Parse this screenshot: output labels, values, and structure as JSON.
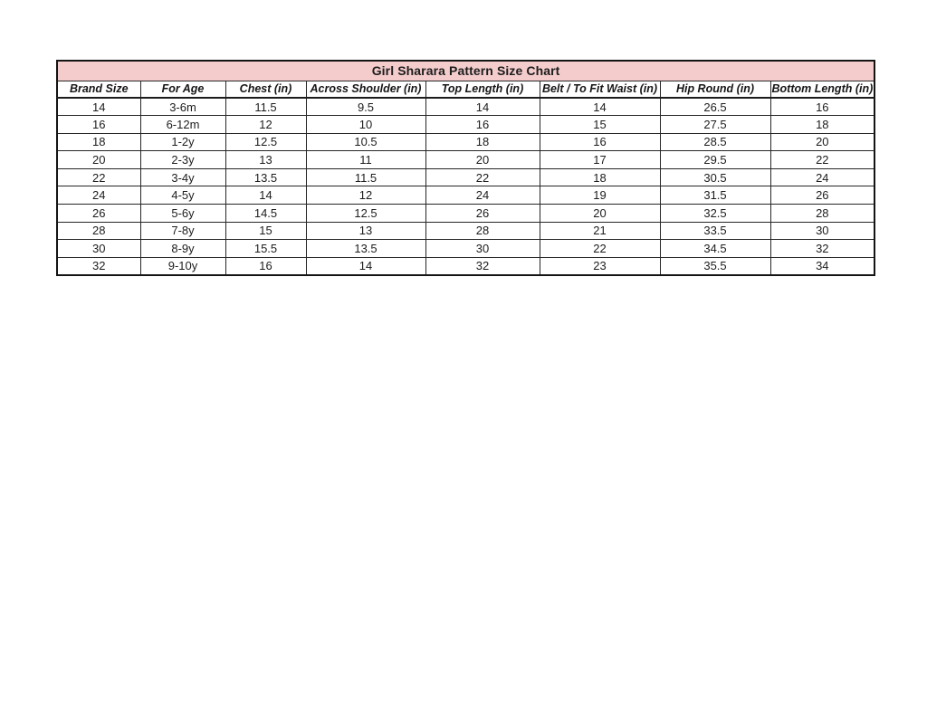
{
  "colors": {
    "title_background": "#f4cccc",
    "border": "#262626",
    "outer_border": "#141414",
    "text": "#1d1d1d",
    "page_background": "#ffffff"
  },
  "chart_data": {
    "type": "table",
    "title": "Girl Sharara Pattern Size Chart",
    "columns": [
      "Brand Size",
      "For Age",
      "Chest (in)",
      "Across Shoulder (in)",
      "Top Length (in)",
      "Belt / To Fit Waist (in)",
      "Hip Round (in)",
      "Bottom Length (in)"
    ],
    "rows": [
      [
        "14",
        "3-6m",
        "11.5",
        "9.5",
        "14",
        "14",
        "26.5",
        "16"
      ],
      [
        "16",
        "6-12m",
        "12",
        "10",
        "16",
        "15",
        "27.5",
        "18"
      ],
      [
        "18",
        "1-2y",
        "12.5",
        "10.5",
        "18",
        "16",
        "28.5",
        "20"
      ],
      [
        "20",
        "2-3y",
        "13",
        "11",
        "20",
        "17",
        "29.5",
        "22"
      ],
      [
        "22",
        "3-4y",
        "13.5",
        "11.5",
        "22",
        "18",
        "30.5",
        "24"
      ],
      [
        "24",
        "4-5y",
        "14",
        "12",
        "24",
        "19",
        "31.5",
        "26"
      ],
      [
        "26",
        "5-6y",
        "14.5",
        "12.5",
        "26",
        "20",
        "32.5",
        "28"
      ],
      [
        "28",
        "7-8y",
        "15",
        "13",
        "28",
        "21",
        "33.5",
        "30"
      ],
      [
        "30",
        "8-9y",
        "15.5",
        "13.5",
        "30",
        "22",
        "34.5",
        "32"
      ],
      [
        "32",
        "9-10y",
        "16",
        "14",
        "32",
        "23",
        "35.5",
        "34"
      ]
    ]
  }
}
